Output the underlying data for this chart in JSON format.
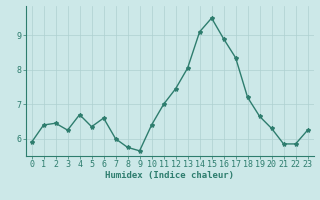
{
  "x": [
    0,
    1,
    2,
    3,
    4,
    5,
    6,
    7,
    8,
    9,
    10,
    11,
    12,
    13,
    14,
    15,
    16,
    17,
    18,
    19,
    20,
    21,
    22,
    23
  ],
  "y": [
    5.9,
    6.4,
    6.45,
    6.25,
    6.7,
    6.35,
    6.6,
    6.0,
    5.75,
    5.65,
    6.4,
    7.0,
    7.45,
    8.05,
    9.1,
    9.5,
    8.9,
    8.35,
    7.2,
    6.65,
    6.3,
    5.85,
    5.85,
    6.25
  ],
  "line_color": "#2e7d6e",
  "marker": "*",
  "marker_size": 3,
  "bg_color": "#cce8e8",
  "grid_color": "#aed0d0",
  "xlabel": "Humidex (Indice chaleur)",
  "ylim": [
    5.5,
    9.85
  ],
  "yticks": [
    6,
    7,
    8,
    9
  ],
  "xticks": [
    0,
    1,
    2,
    3,
    4,
    5,
    6,
    7,
    8,
    9,
    10,
    11,
    12,
    13,
    14,
    15,
    16,
    17,
    18,
    19,
    20,
    21,
    22,
    23
  ],
  "axis_color": "#2e7d6e",
  "tick_color": "#2e7d6e",
  "label_fontsize": 6.5,
  "tick_fontsize": 6,
  "linewidth": 1.0
}
